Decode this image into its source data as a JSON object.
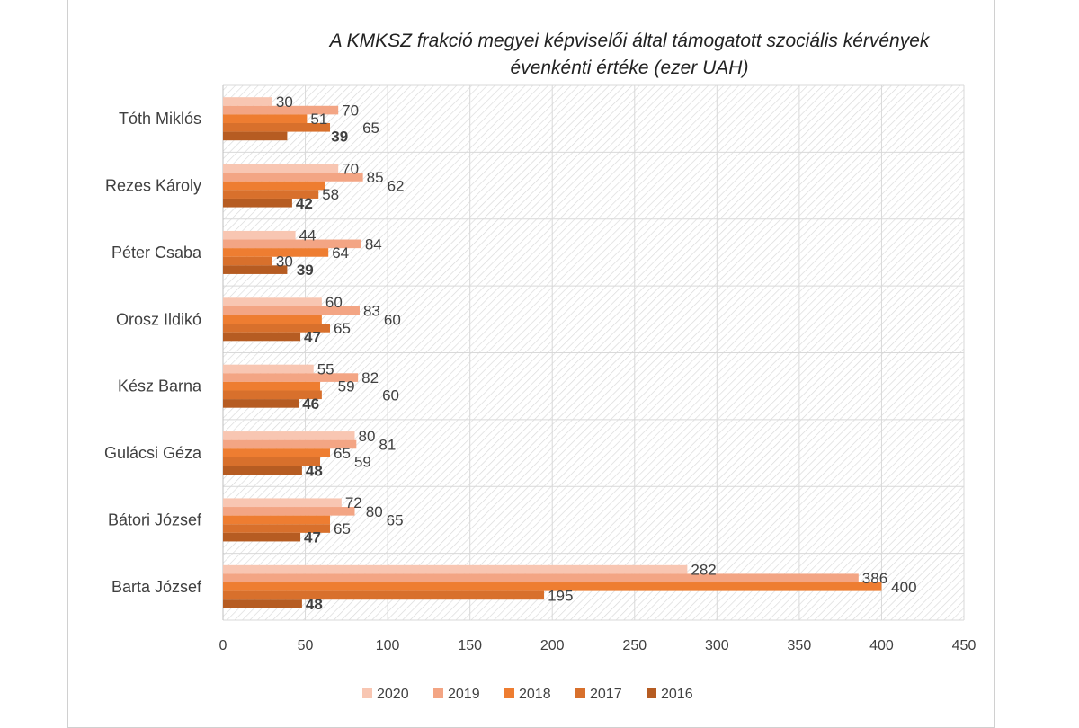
{
  "chart_data": {
    "type": "bar",
    "orientation": "horizontal",
    "title": "A KMKSZ frakció megyei képviselői által támogatott szociális kérvények évenkénti értéke (ezer UAH)",
    "title_lines": [
      "A KMKSZ frakció megyei képviselői által támogatott szociális kérvények",
      "évenkénti értéke (ezer UAH)"
    ],
    "categories": [
      "Tóth Miklós",
      "Rezes Károly",
      "Péter Csaba",
      "Orosz Ildikó",
      "Kész Barna",
      "Gulácsi Géza",
      "Bátori József",
      "Barta József"
    ],
    "series": [
      {
        "name": "2020",
        "color": "#f8c6b2",
        "values": [
          30,
          70,
          44,
          60,
          55,
          80,
          72,
          282
        ]
      },
      {
        "name": "2019",
        "color": "#f3a584",
        "values": [
          70,
          85,
          84,
          83,
          82,
          81,
          80,
          386
        ]
      },
      {
        "name": "2018",
        "color": "#ee7d31",
        "values": [
          51,
          62,
          64,
          60,
          59,
          65,
          65,
          400
        ]
      },
      {
        "name": "2017",
        "color": "#d8702c",
        "values": [
          65,
          58,
          30,
          65,
          60,
          59,
          65,
          195
        ]
      },
      {
        "name": "2016",
        "color": "#b65c22",
        "values": [
          39,
          42,
          39,
          47,
          46,
          48,
          47,
          48
        ]
      }
    ],
    "xlim": [
      0,
      450
    ],
    "xticks": [
      "0",
      "50",
      "100",
      "150",
      "200",
      "250",
      "300",
      "350",
      "400",
      "450"
    ],
    "grid": true,
    "legend": "bottom"
  }
}
